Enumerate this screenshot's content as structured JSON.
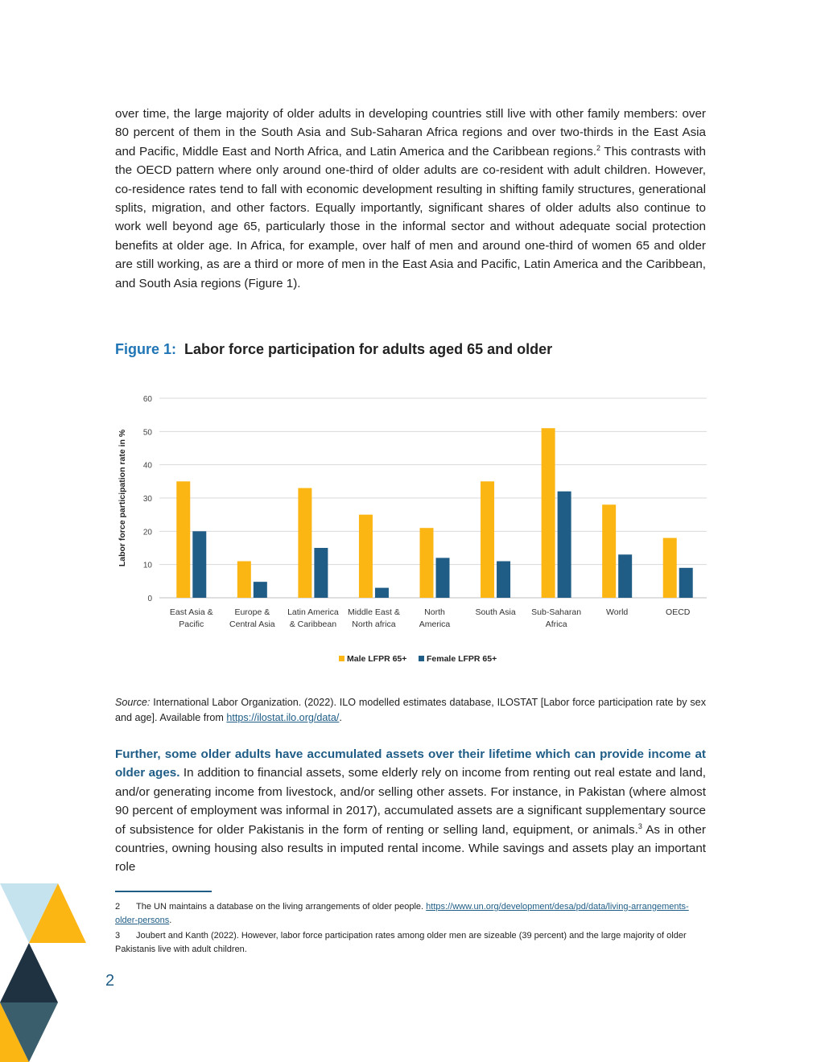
{
  "body": {
    "para1": "over time, the large majority of older adults in developing countries still live with other family members: over 80 percent of them in the South Asia and Sub-Saharan Africa regions and over two-thirds in the East Asia and Pacific, Middle East and North Africa, and Latin America and the Caribbean regions.",
    "para1_ref": "2",
    "para1_cont": " This contrasts with the OECD pattern where only around one-third of older adults are co-resident with adult children. However, co-residence rates tend to fall with economic development resulting in shifting family structures, generational splits, migration, and other factors. Equally importantly, significant shares of older adults also continue to work well beyond age 65, particularly those in the informal sector and without adequate social protection benefits at older age. In Africa, for example, over half of men and around one-third of women 65 and older are still working, as are a third or more of men in the East Asia and Pacific, Latin America and the Caribbean, and South Asia regions (Figure 1).",
    "para2_lead": "Further, some older adults have accumulated assets over their lifetime which can provide income at older ages.",
    "para2_a": "  In addition to financial assets, some elderly rely on income from renting out real estate and land, and/or generating income from livestock, and/or selling other assets. For instance, in Pakistan (where almost 90 percent of employment was informal in 2017), accumulated assets are a significant supplementary source of subsistence for older Pakistanis in the form of renting or selling land, equipment, or animals.",
    "para2_ref": "3",
    "para2_b": " As in other countries, owning housing also results in imputed rental income. While savings and assets play an important role"
  },
  "figure": {
    "number": "Figure 1:",
    "title": "Labor force participation for adults aged 65 and older"
  },
  "chart_data": {
    "type": "bar",
    "title": "",
    "xlabel": "",
    "ylabel": "Labor force participation rate in %",
    "ylim": [
      0,
      60
    ],
    "yticks": [
      "0",
      "10",
      "20",
      "30",
      "40",
      "50",
      "60"
    ],
    "grid": true,
    "legend_position": "bottom-center",
    "categories": [
      [
        "East Asia &",
        "Pacific"
      ],
      [
        "Europe &",
        "Central Asia"
      ],
      [
        "Latin America",
        "& Caribbean"
      ],
      [
        "Middle East &",
        "North africa"
      ],
      [
        "North",
        "America"
      ],
      [
        "South Asia"
      ],
      [
        "Sub-Saharan",
        "Africa"
      ],
      [
        "World"
      ],
      [
        "OECD"
      ]
    ],
    "series": [
      {
        "name": "Male LFPR 65+",
        "color": "#FBB614",
        "values": [
          35,
          11,
          33,
          25,
          21,
          35,
          51,
          28,
          18
        ]
      },
      {
        "name": "Female LFPR 65+",
        "color": "#1F5D86",
        "values": [
          20,
          4.8,
          15,
          3,
          12,
          11,
          32,
          13,
          9
        ]
      }
    ]
  },
  "source": {
    "label": "Source:",
    "text": " International Labor Organization. (2022). ILO modelled estimates database, ILOSTAT [Labor force participation rate by sex and age]. Available from ",
    "link": "https://ilostat.ilo.org/data/",
    "end": "."
  },
  "footnotes": [
    {
      "num": "2",
      "text": "The UN maintains a database on the living arrangements of older people. ",
      "link": "https://www.un.org/development/desa/pd/data/living-arrangements-older-persons",
      "end": "."
    },
    {
      "num": "3",
      "text": "Joubert and Kanth (2022). However, labor force participation rates among older men are sizeable (39 percent) and the large majority of older Pakistanis live with adult children.",
      "link": "",
      "end": ""
    }
  ],
  "page_number": "2",
  "decoration": {
    "colors": [
      "#C5E3EF",
      "#FBB614",
      "#1E3242",
      "#3A5E6B"
    ]
  }
}
